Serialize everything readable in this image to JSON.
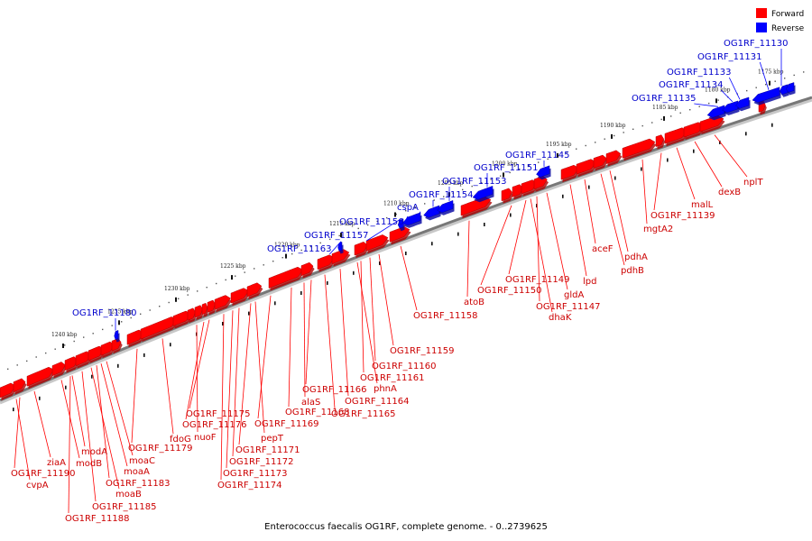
{
  "legend": {
    "forward_label": "Forward",
    "reverse_label": "Reverse",
    "forward_color": "#ff0000",
    "reverse_color": "#0000ff"
  },
  "caption": "Enterococcus faecalis OG1RF, complete genome. - 0..2739625",
  "colors": {
    "forward": "#ff0000",
    "forward_dark": "#b00000",
    "reverse": "#0000ff",
    "reverse_dark": "#0000a0",
    "forward_label": "#cc0000",
    "reverse_label": "#0000cc",
    "backbone": "#777777"
  },
  "kbp_ticks": [
    "1175 kbp",
    "1180 kbp",
    "1185 kbp",
    "1190 kbp",
    "1195 kbp",
    "1200 kbp",
    "1205 kbp",
    "1210 kbp",
    "1215 kbp",
    "1220 kbp",
    "1225 kbp",
    "1230 kbp",
    "1235 kbp",
    "1240 kbp"
  ],
  "forward_labels": [
    "nplT",
    "dexB",
    "malL",
    "OG1RF_11139",
    "mgtA2",
    "pdhA",
    "pdhB",
    "aceF",
    "lpd",
    "gldA",
    "OG1RF_11149",
    "OG1RF_11150",
    "OG1RF_11147",
    "dhaK",
    "atoB",
    "OG1RF_11158",
    "OG1RF_11159",
    "OG1RF_11160",
    "OG1RF_11161",
    "phnA",
    "OG1RF_11164",
    "OG1RF_11165",
    "OG1RF_11166",
    "OG1RF_11168",
    "alaS",
    "OG1RF_11169",
    "pepT",
    "OG1RF_11171",
    "OG1RF_11172",
    "OG1RF_11173",
    "OG1RF_11174",
    "OG1RF_11175",
    "OG1RF_11176",
    "nuoF",
    "fdoG",
    "OG1RF_11179",
    "moaC",
    "moaA",
    "OG1RF_11183",
    "moaB",
    "OG1RF_11185",
    "OG1RF_11188",
    "modA",
    "modB",
    "ziaA",
    "OG1RF_11190",
    "cvpA"
  ],
  "reverse_labels": [
    "OG1RF_11130",
    "OG1RF_11131",
    "OG1RF_11133",
    "OG1RF_11134",
    "OG1RF_11135",
    "OG1RF_11145",
    "OG1RF_11151",
    "OG1RF_11153",
    "OG1RF_11154",
    "cspA",
    "OG1RF_11156",
    "OG1RF_11157",
    "OG1RF_11163",
    "OG1RF_11180"
  ]
}
